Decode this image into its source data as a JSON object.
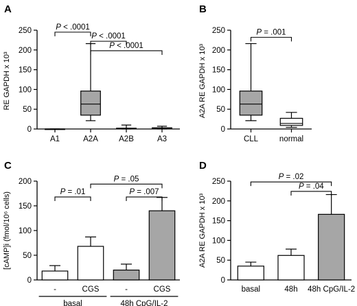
{
  "chart_data": [
    {
      "panel": "A",
      "type": "box",
      "ylabel": "RE GAPDH x 10³",
      "ylim": [
        0,
        250
      ],
      "yticks": [
        0,
        50,
        100,
        150,
        200,
        250
      ],
      "categories": [
        "A1",
        "A2A",
        "A2B",
        "A3"
      ],
      "boxes": [
        {
          "category": "A1",
          "min": 0,
          "q1": 0,
          "median": 0,
          "q3": 0,
          "max": 0,
          "fill": "#ffffff"
        },
        {
          "category": "A2A",
          "min": 21,
          "q1": 35,
          "median": 63,
          "q3": 96,
          "max": 216,
          "fill": "#a6a6a6"
        },
        {
          "category": "A2B",
          "min": 0,
          "q1": 0.5,
          "median": 1,
          "q3": 2,
          "max": 10,
          "fill": "#ffffff"
        },
        {
          "category": "A3",
          "min": 0,
          "q1": 0.5,
          "median": 1.5,
          "q3": 3,
          "max": 7,
          "fill": "#ffffff"
        }
      ],
      "comparisons": [
        {
          "from": "A1",
          "to": "A2A",
          "label": "P < .0001",
          "y": 245
        },
        {
          "from": "A2A",
          "to": "A2B",
          "label": "P < .0001",
          "y": 222
        },
        {
          "from": "A2A",
          "to": "A3",
          "label": "P < .0001",
          "y": 198
        }
      ]
    },
    {
      "panel": "B",
      "type": "box",
      "ylabel": "A2A RE GAPDH x 10³",
      "ylim": [
        0,
        250
      ],
      "yticks": [
        0,
        50,
        100,
        150,
        200,
        250
      ],
      "categories": [
        "CLL",
        "normal"
      ],
      "boxes": [
        {
          "category": "CLL",
          "min": 21,
          "q1": 35,
          "median": 63,
          "q3": 96,
          "max": 216,
          "fill": "#a6a6a6"
        },
        {
          "category": "normal",
          "min": 4,
          "q1": 9,
          "median": 14,
          "q3": 27,
          "max": 42,
          "fill": "#ffffff"
        }
      ],
      "comparisons": [
        {
          "from": "CLL",
          "to": "normal",
          "label": "P = .001",
          "y": 232
        }
      ]
    },
    {
      "panel": "C",
      "type": "bar",
      "ylabel": "[cAMP]i (fmol/10⁶ cells)",
      "ylim": [
        0,
        200
      ],
      "yticks": [
        0,
        50,
        100,
        150,
        200
      ],
      "categories": [
        "-",
        "CGS",
        "-",
        "CGS"
      ],
      "values": [
        18,
        68,
        20,
        140
      ],
      "errors": [
        11,
        19,
        12,
        27
      ],
      "fills": [
        "#ffffff",
        "#ffffff",
        "#a6a6a6",
        "#a6a6a6"
      ],
      "groups": [
        {
          "label": "basal",
          "start": 0,
          "end": 1
        },
        {
          "label": "48h CpG/IL-2",
          "start": 2,
          "end": 3
        }
      ],
      "comparisons": [
        {
          "from": 0,
          "to": 1,
          "label": "P = .01",
          "y": 168
        },
        {
          "from": 2,
          "to": 3,
          "label": "P = .007",
          "y": 168
        },
        {
          "from": 1,
          "to": 3,
          "label": "P = .05",
          "y": 194
        }
      ]
    },
    {
      "panel": "D",
      "type": "bar",
      "ylabel": "A2A RE GAPDH x 10³",
      "ylim": [
        0,
        250
      ],
      "yticks": [
        0,
        50,
        100,
        150,
        200,
        250
      ],
      "categories": [
        "basal",
        "48h",
        "48h CpG/IL-2"
      ],
      "values": [
        35,
        62,
        166
      ],
      "errors": [
        10,
        16,
        50
      ],
      "fills": [
        "#ffffff",
        "#ffffff",
        "#a6a6a6"
      ],
      "comparisons": [
        {
          "from": 1,
          "to": 2,
          "label": "P = .04",
          "y": 224
        },
        {
          "from": 0,
          "to": 2,
          "label": "P = .02",
          "y": 248
        }
      ]
    }
  ]
}
